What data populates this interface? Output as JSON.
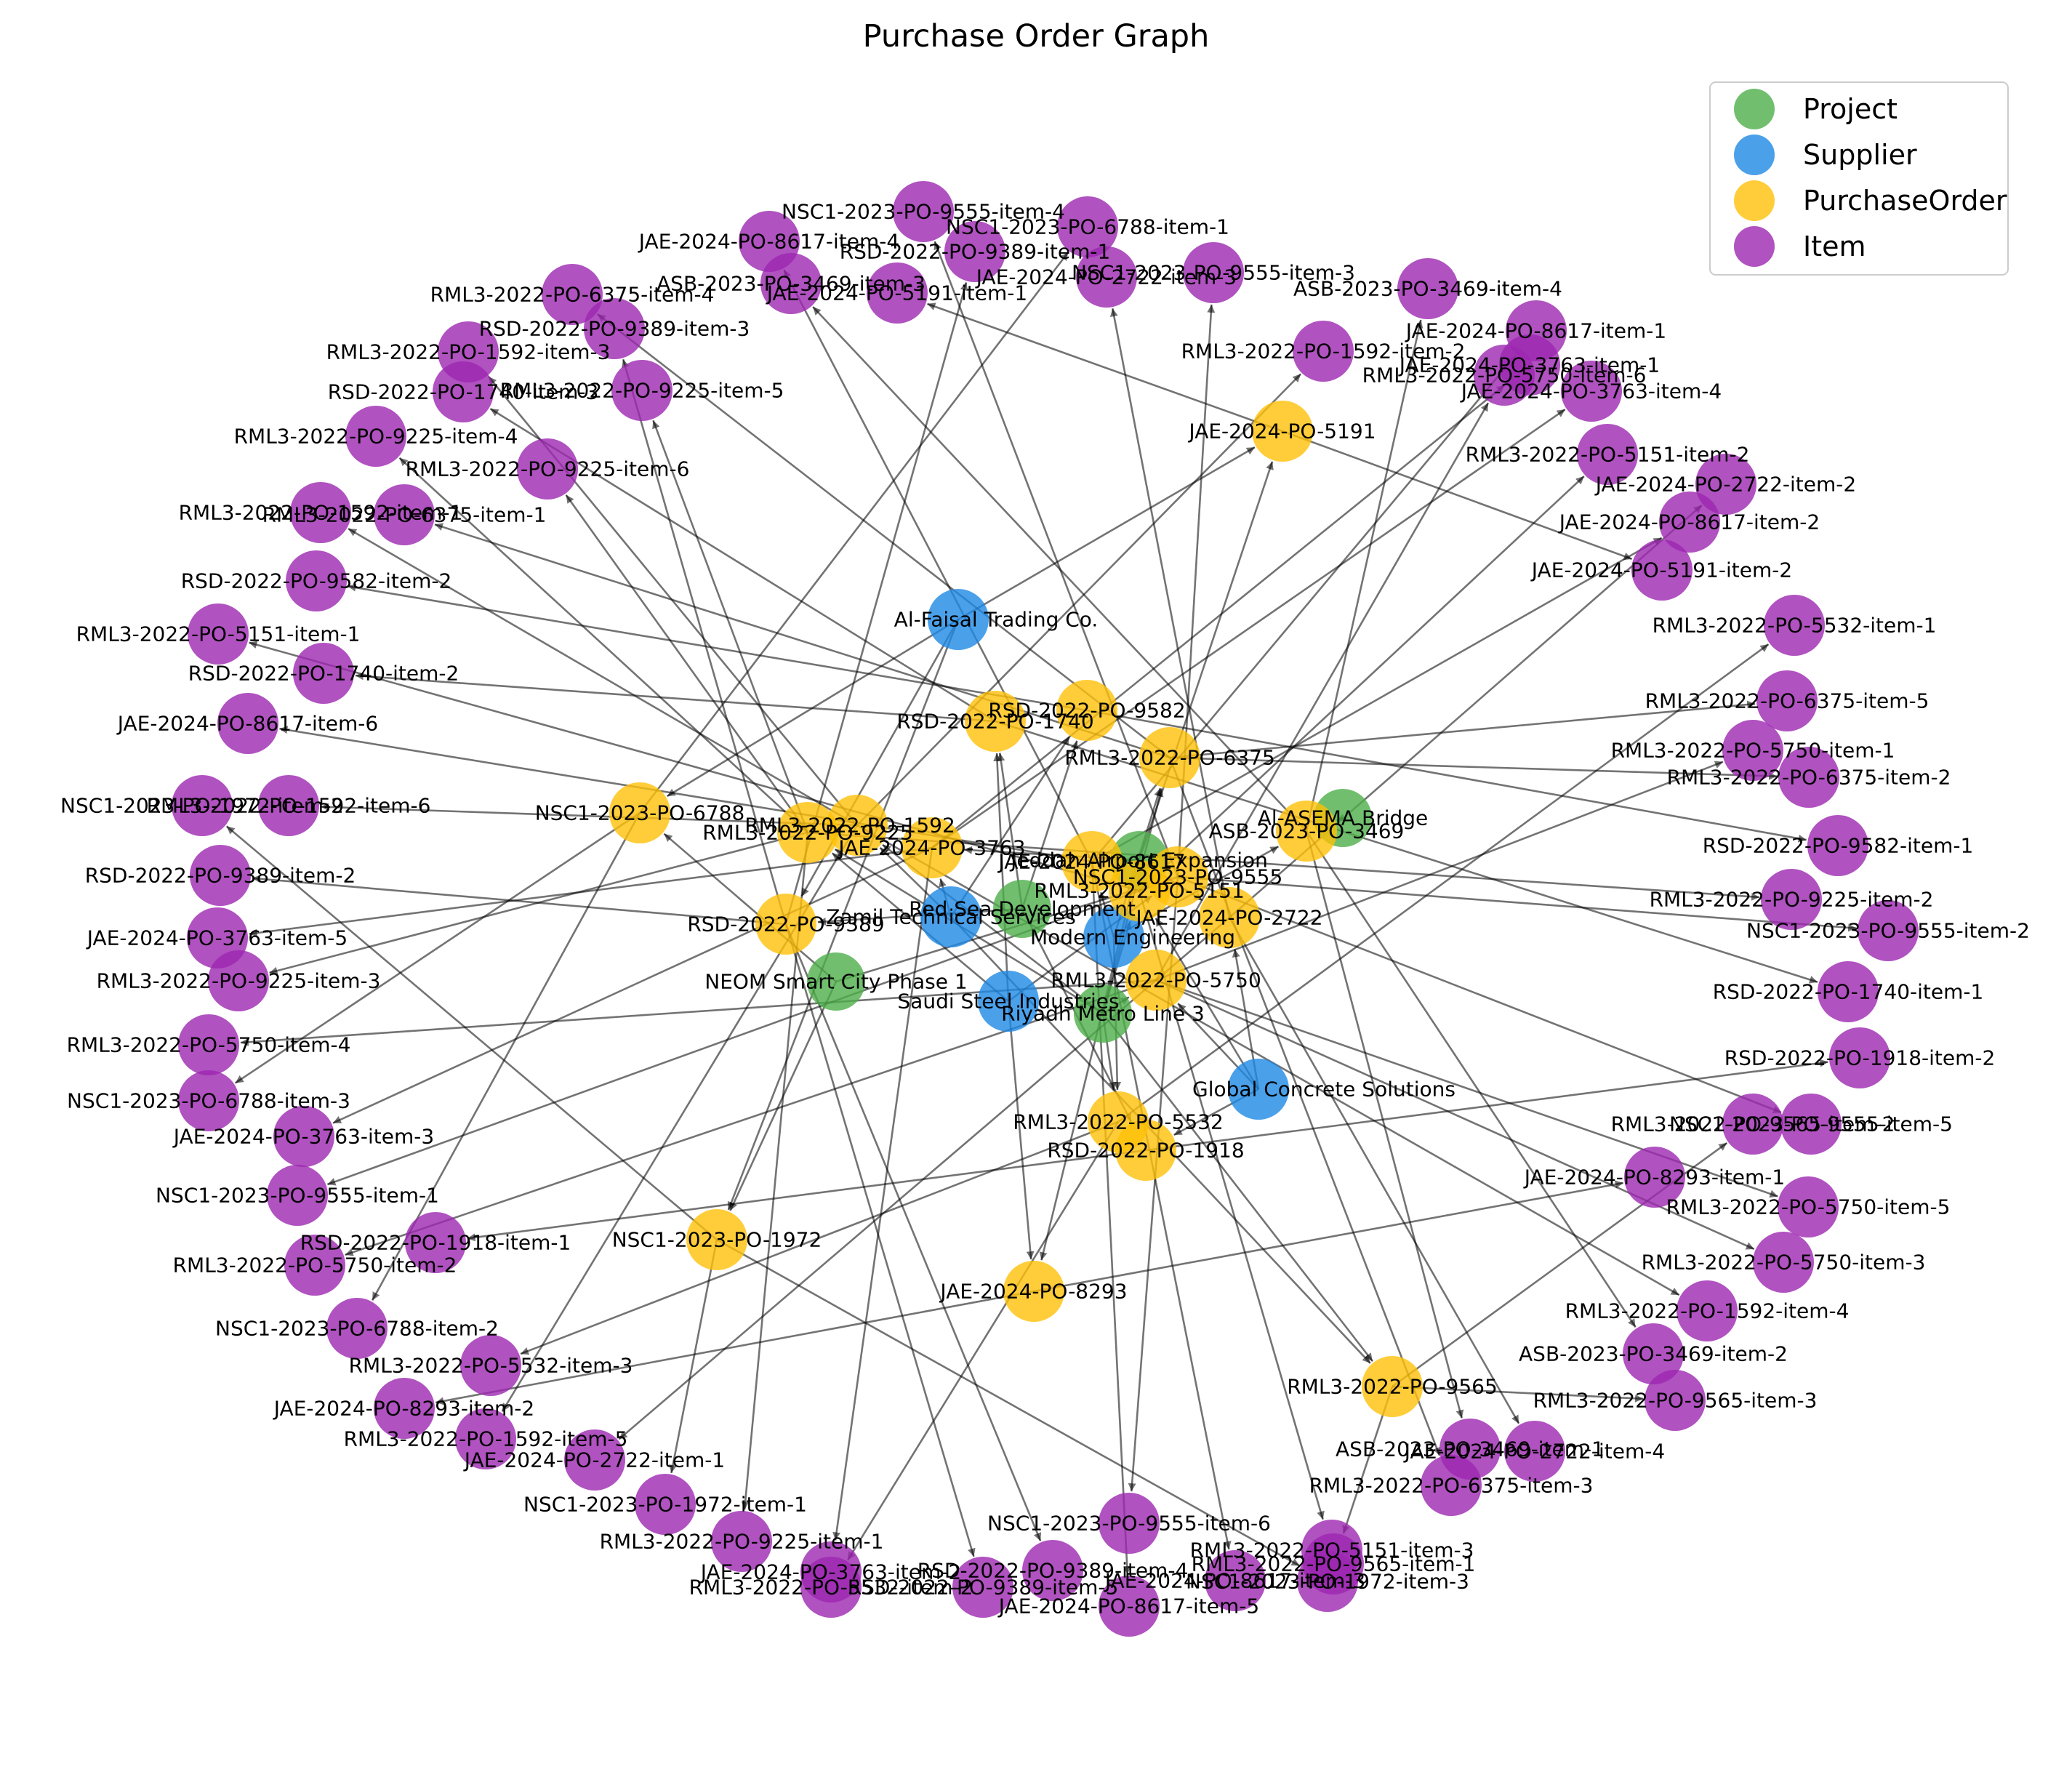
{
  "title": "Purchase Order Graph",
  "colors": {
    "Project": "#4daf4a",
    "Supplier": "#1e88e5",
    "PurchaseOrder": "#ffc107",
    "Item": "#9c27b0"
  },
  "legend": [
    {
      "label": "Project",
      "type": "Project"
    },
    {
      "label": "Supplier",
      "type": "Supplier"
    },
    {
      "label": "PurchaseOrder",
      "type": "PurchaseOrder"
    },
    {
      "label": "Item",
      "type": "Item"
    }
  ],
  "nodes": [
    {
      "id": "proj-neom",
      "label": "NEOM Smart City Phase 1",
      "type": "Project"
    },
    {
      "id": "proj-riyadh",
      "label": "Riyadh Metro Line 3",
      "type": "Project"
    },
    {
      "id": "proj-redsea",
      "label": "Red Sea Development",
      "type": "Project"
    },
    {
      "id": "proj-jeddah",
      "label": "Jeddah Airport Expansion",
      "type": "Project"
    },
    {
      "id": "proj-asema",
      "label": "Al-ASEMA Bridge",
      "type": "Project"
    },
    {
      "id": "sup-faisal",
      "label": "Al-Faisal Trading Co.",
      "type": "Supplier"
    },
    {
      "id": "sup-zamil",
      "label": "Zamil Technical Services",
      "type": "Supplier"
    },
    {
      "id": "sup-modern",
      "label": "Modern Engineering",
      "type": "Supplier"
    },
    {
      "id": "sup-saudi",
      "label": "Saudi Steel Industries",
      "type": "Supplier"
    },
    {
      "id": "sup-global",
      "label": "Global Concrete Solutions",
      "type": "Supplier"
    },
    {
      "id": "po-5191",
      "label": "JAE-2024-PO-5191",
      "type": "PurchaseOrder"
    },
    {
      "id": "po-9582",
      "label": "RSD-2022-PO-9582",
      "type": "PurchaseOrder"
    },
    {
      "id": "po-1740",
      "label": "RSD-2022-PO-1740",
      "type": "PurchaseOrder"
    },
    {
      "id": "po-6375",
      "label": "RML3-2022-PO-6375",
      "type": "PurchaseOrder"
    },
    {
      "id": "po-6788",
      "label": "NSC1-2023-PO-6788",
      "type": "PurchaseOrder"
    },
    {
      "id": "po-1592",
      "label": "RML3-2022-PO-1592",
      "type": "PurchaseOrder"
    },
    {
      "id": "po-9225",
      "label": "RML3-2022-PO-9225",
      "type": "PurchaseOrder"
    },
    {
      "id": "po-3763",
      "label": "JAE-2024-PO-3763",
      "type": "PurchaseOrder"
    },
    {
      "id": "po-8617",
      "label": "JAE-2024-PO-8617",
      "type": "PurchaseOrder"
    },
    {
      "id": "po-5151",
      "label": "RML3-2022-PO-5151",
      "type": "PurchaseOrder"
    },
    {
      "id": "po-9555",
      "label": "NSC1-2023-PO-9555",
      "type": "PurchaseOrder"
    },
    {
      "id": "po-3469",
      "label": "ASB-2023-PO-3469",
      "type": "PurchaseOrder"
    },
    {
      "id": "po-2722",
      "label": "JAE-2024-PO-2722",
      "type": "PurchaseOrder"
    },
    {
      "id": "po-9389",
      "label": "RSD-2022-PO-9389",
      "type": "PurchaseOrder"
    },
    {
      "id": "po-5750",
      "label": "RML3-2022-PO-5750",
      "type": "PurchaseOrder"
    },
    {
      "id": "po-5532",
      "label": "RML3-2022-PO-5532",
      "type": "PurchaseOrder"
    },
    {
      "id": "po-1918",
      "label": "RSD-2022-PO-1918",
      "type": "PurchaseOrder"
    },
    {
      "id": "po-1972",
      "label": "NSC1-2023-PO-1972",
      "type": "PurchaseOrder"
    },
    {
      "id": "po-8293",
      "label": "JAE-2024-PO-8293",
      "type": "PurchaseOrder"
    },
    {
      "id": "po-9565",
      "label": "RML3-2022-PO-9565",
      "type": "PurchaseOrder"
    },
    {
      "id": "it-01",
      "label": "NSC1-2023-PO-9555-item-4",
      "type": "Item"
    },
    {
      "id": "it-02",
      "label": "NSC1-2023-PO-6788-item-1",
      "type": "Item"
    },
    {
      "id": "it-03",
      "label": "JAE-2024-PO-8617-item-4",
      "type": "Item"
    },
    {
      "id": "it-04",
      "label": "RSD-2022-PO-9389-item-1",
      "type": "Item"
    },
    {
      "id": "it-05",
      "label": "JAE-2024-PO-2722-item-3",
      "type": "Item"
    },
    {
      "id": "it-06",
      "label": "RML3-2022-PO-6375-item-4",
      "type": "Item"
    },
    {
      "id": "it-07",
      "label": "ASB-2023-PO-3469-item-3",
      "type": "Item"
    },
    {
      "id": "it-08",
      "label": "NSC1-2023-PO-9555-item-3",
      "type": "Item"
    },
    {
      "id": "it-09",
      "label": "ASB-2023-PO-3469-item-4",
      "type": "Item"
    },
    {
      "id": "it-10",
      "label": "RSD-2022-PO-9389-item-3",
      "type": "Item"
    },
    {
      "id": "it-11",
      "label": "JAE-2024-PO-5191-item-1",
      "type": "Item"
    },
    {
      "id": "it-12",
      "label": "JAE-2024-PO-8617-item-1",
      "type": "Item"
    },
    {
      "id": "it-13",
      "label": "RML3-2022-PO-1592-item-2",
      "type": "Item"
    },
    {
      "id": "it-14",
      "label": "JAE-2024-PO-3763-item-1",
      "type": "Item"
    },
    {
      "id": "it-15",
      "label": "RML3-2022-PO-1592-item-3",
      "type": "Item"
    },
    {
      "id": "it-16",
      "label": "RML3-2022-PO-5750-item-6",
      "type": "Item"
    },
    {
      "id": "it-17",
      "label": "RML3-2022-PO-9225-item-5",
      "type": "Item"
    },
    {
      "id": "it-18",
      "label": "JAE-2024-PO-3763-item-4",
      "type": "Item"
    },
    {
      "id": "it-19",
      "label": "RSD-2022-PO-1740-item-3",
      "type": "Item"
    },
    {
      "id": "it-20",
      "label": "RML3-2022-PO-9225-item-4",
      "type": "Item"
    },
    {
      "id": "it-21",
      "label": "RML3-2022-PO-5151-item-2",
      "type": "Item"
    },
    {
      "id": "it-22",
      "label": "RML3-2022-PO-9225-item-6",
      "type": "Item"
    },
    {
      "id": "it-23",
      "label": "JAE-2024-PO-2722-item-2",
      "type": "Item"
    },
    {
      "id": "it-24",
      "label": "RML3-2022-PO-1592-item-1",
      "type": "Item"
    },
    {
      "id": "it-25",
      "label": "RML3-2022-PO-6375-item-1",
      "type": "Item"
    },
    {
      "id": "it-26",
      "label": "JAE-2024-PO-8617-item-2",
      "type": "Item"
    },
    {
      "id": "it-27",
      "label": "JAE-2024-PO-5191-item-2",
      "type": "Item"
    },
    {
      "id": "it-28",
      "label": "RSD-2022-PO-9582-item-2",
      "type": "Item"
    },
    {
      "id": "it-29",
      "label": "RML3-2022-PO-5532-item-1",
      "type": "Item"
    },
    {
      "id": "it-30",
      "label": "RML3-2022-PO-5151-item-1",
      "type": "Item"
    },
    {
      "id": "it-31",
      "label": "RSD-2022-PO-1740-item-2",
      "type": "Item"
    },
    {
      "id": "it-32",
      "label": "RML3-2022-PO-6375-item-5",
      "type": "Item"
    },
    {
      "id": "it-33",
      "label": "JAE-2024-PO-8617-item-6",
      "type": "Item"
    },
    {
      "id": "it-34",
      "label": "RML3-2022-PO-5750-item-1",
      "type": "Item"
    },
    {
      "id": "it-35",
      "label": "RML3-2022-PO-6375-item-2",
      "type": "Item"
    },
    {
      "id": "it-36",
      "label": "NSC1-2023-PO-1972-item-2",
      "type": "Item"
    },
    {
      "id": "it-37",
      "label": "RML3-2022-PO-1592-item-6",
      "type": "Item"
    },
    {
      "id": "it-38",
      "label": "RSD-2022-PO-9582-item-1",
      "type": "Item"
    },
    {
      "id": "it-39",
      "label": "RSD-2022-PO-9389-item-2",
      "type": "Item"
    },
    {
      "id": "it-40",
      "label": "RML3-2022-PO-9225-item-2",
      "type": "Item"
    },
    {
      "id": "it-41",
      "label": "JAE-2024-PO-3763-item-5",
      "type": "Item"
    },
    {
      "id": "it-42",
      "label": "NSC1-2023-PO-9555-item-2",
      "type": "Item"
    },
    {
      "id": "it-43",
      "label": "RML3-2022-PO-9225-item-3",
      "type": "Item"
    },
    {
      "id": "it-44",
      "label": "RSD-2022-PO-1740-item-1",
      "type": "Item"
    },
    {
      "id": "it-45",
      "label": "RML3-2022-PO-5750-item-4",
      "type": "Item"
    },
    {
      "id": "it-46",
      "label": "RSD-2022-PO-1918-item-2",
      "type": "Item"
    },
    {
      "id": "it-47",
      "label": "NSC1-2023-PO-6788-item-3",
      "type": "Item"
    },
    {
      "id": "it-48",
      "label": "JAE-2024-PO-3763-item-3",
      "type": "Item"
    },
    {
      "id": "it-49",
      "label": "RML3-2022-PO-9565-item-2",
      "type": "Item"
    },
    {
      "id": "it-50",
      "label": "NSC1-2023-PO-9555-item-5",
      "type": "Item"
    },
    {
      "id": "it-51",
      "label": "NSC1-2023-PO-9555-item-1",
      "type": "Item"
    },
    {
      "id": "it-52",
      "label": "JAE-2024-PO-8293-item-1",
      "type": "Item"
    },
    {
      "id": "it-53",
      "label": "RSD-2022-PO-1918-item-1",
      "type": "Item"
    },
    {
      "id": "it-54",
      "label": "RML3-2022-PO-5750-item-5",
      "type": "Item"
    },
    {
      "id": "it-55",
      "label": "RML3-2022-PO-5750-item-2",
      "type": "Item"
    },
    {
      "id": "it-56",
      "label": "RML3-2022-PO-5750-item-3",
      "type": "Item"
    },
    {
      "id": "it-57",
      "label": "NSC1-2023-PO-6788-item-2",
      "type": "Item"
    },
    {
      "id": "it-58",
      "label": "RML3-2022-PO-1592-item-4",
      "type": "Item"
    },
    {
      "id": "it-59",
      "label": "RML3-2022-PO-5532-item-3",
      "type": "Item"
    },
    {
      "id": "it-60",
      "label": "ASB-2023-PO-3469-item-2",
      "type": "Item"
    },
    {
      "id": "it-61",
      "label": "JAE-2024-PO-8293-item-2",
      "type": "Item"
    },
    {
      "id": "it-62",
      "label": "RML3-2022-PO-1592-item-5",
      "type": "Item"
    },
    {
      "id": "it-63",
      "label": "RML3-2022-PO-9565-item-3",
      "type": "Item"
    },
    {
      "id": "it-64",
      "label": "JAE-2024-PO-2722-item-1",
      "type": "Item"
    },
    {
      "id": "it-65",
      "label": "JAE-2024-PO-2722-item-4",
      "type": "Item"
    },
    {
      "id": "it-66",
      "label": "ASB-2023-PO-3469-item-1",
      "type": "Item"
    },
    {
      "id": "it-67",
      "label": "NSC1-2023-PO-1972-item-1",
      "type": "Item"
    },
    {
      "id": "it-68",
      "label": "RML3-2022-PO-6375-item-3",
      "type": "Item"
    },
    {
      "id": "it-69",
      "label": "RML3-2022-PO-9225-item-1",
      "type": "Item"
    },
    {
      "id": "it-70",
      "label": "NSC1-2023-PO-9555-item-6",
      "type": "Item"
    },
    {
      "id": "it-71",
      "label": "RML3-2022-PO-5151-item-3",
      "type": "Item"
    },
    {
      "id": "it-72",
      "label": "JAE-2024-PO-3763-item-2",
      "type": "Item"
    },
    {
      "id": "it-73",
      "label": "RML3-2022-PO-9565-item-1",
      "type": "Item"
    },
    {
      "id": "it-74",
      "label": "RML3-2022-PO-5532-item-2",
      "type": "Item"
    },
    {
      "id": "it-75",
      "label": "RSD-2022-PO-9389-item-4",
      "type": "Item"
    },
    {
      "id": "it-76",
      "label": "NSC1-2023-PO-1972-item-3",
      "type": "Item"
    },
    {
      "id": "it-77",
      "label": "RSD-2022-PO-9389-item-5",
      "type": "Item"
    },
    {
      "id": "it-78",
      "label": "JAE-2024-PO-8617-item-3",
      "type": "Item"
    },
    {
      "id": "it-79",
      "label": "JAE-2024-PO-8617-item-5",
      "type": "Item"
    }
  ],
  "edges": [
    [
      "proj-neom",
      "po-6788"
    ],
    [
      "proj-neom",
      "po-9555"
    ],
    [
      "proj-neom",
      "po-1972"
    ],
    [
      "proj-riyadh",
      "po-6375"
    ],
    [
      "proj-riyadh",
      "po-1592"
    ],
    [
      "proj-riyadh",
      "po-9225"
    ],
    [
      "proj-riyadh",
      "po-5151"
    ],
    [
      "proj-riyadh",
      "po-5750"
    ],
    [
      "proj-riyadh",
      "po-5532"
    ],
    [
      "proj-riyadh",
      "po-9565"
    ],
    [
      "proj-redsea",
      "po-9582"
    ],
    [
      "proj-redsea",
      "po-1740"
    ],
    [
      "proj-redsea",
      "po-9389"
    ],
    [
      "proj-redsea",
      "po-1918"
    ],
    [
      "proj-jeddah",
      "po-5191"
    ],
    [
      "proj-jeddah",
      "po-3763"
    ],
    [
      "proj-jeddah",
      "po-8617"
    ],
    [
      "proj-jeddah",
      "po-2722"
    ],
    [
      "proj-jeddah",
      "po-8293"
    ],
    [
      "proj-asema",
      "po-3469"
    ],
    [
      "sup-faisal",
      "po-6788"
    ],
    [
      "sup-faisal",
      "po-5191"
    ],
    [
      "sup-faisal",
      "po-9389"
    ],
    [
      "sup-faisal",
      "po-1972"
    ],
    [
      "sup-zamil",
      "po-9582"
    ],
    [
      "sup-zamil",
      "po-1592"
    ],
    [
      "sup-zamil",
      "po-3763"
    ],
    [
      "sup-zamil",
      "po-9565"
    ],
    [
      "sup-modern",
      "po-6375"
    ],
    [
      "sup-modern",
      "po-8617"
    ],
    [
      "sup-modern",
      "po-3469"
    ],
    [
      "sup-modern",
      "po-5532"
    ],
    [
      "sup-saudi",
      "po-1740"
    ],
    [
      "sup-saudi",
      "po-9225"
    ],
    [
      "sup-saudi",
      "po-9555"
    ],
    [
      "sup-saudi",
      "po-8293"
    ],
    [
      "sup-global",
      "po-5151"
    ],
    [
      "sup-global",
      "po-2722"
    ],
    [
      "sup-global",
      "po-5750"
    ],
    [
      "sup-global",
      "po-1918"
    ],
    [
      "po-9555",
      "it-01"
    ],
    [
      "po-9555",
      "it-08"
    ],
    [
      "po-9555",
      "it-42"
    ],
    [
      "po-9555",
      "it-50"
    ],
    [
      "po-9555",
      "it-51"
    ],
    [
      "po-9555",
      "it-70"
    ],
    [
      "po-6788",
      "it-02"
    ],
    [
      "po-6788",
      "it-47"
    ],
    [
      "po-6788",
      "it-57"
    ],
    [
      "po-8617",
      "it-03"
    ],
    [
      "po-8617",
      "it-12"
    ],
    [
      "po-8617",
      "it-26"
    ],
    [
      "po-8617",
      "it-33"
    ],
    [
      "po-8617",
      "it-78"
    ],
    [
      "po-8617",
      "it-79"
    ],
    [
      "po-9389",
      "it-04"
    ],
    [
      "po-9389",
      "it-10"
    ],
    [
      "po-9389",
      "it-39"
    ],
    [
      "po-9389",
      "it-75"
    ],
    [
      "po-9389",
      "it-77"
    ],
    [
      "po-2722",
      "it-05"
    ],
    [
      "po-2722",
      "it-23"
    ],
    [
      "po-2722",
      "it-64"
    ],
    [
      "po-2722",
      "it-65"
    ],
    [
      "po-6375",
      "it-06"
    ],
    [
      "po-6375",
      "it-25"
    ],
    [
      "po-6375",
      "it-32"
    ],
    [
      "po-6375",
      "it-35"
    ],
    [
      "po-6375",
      "it-68"
    ],
    [
      "po-3469",
      "it-07"
    ],
    [
      "po-3469",
      "it-09"
    ],
    [
      "po-3469",
      "it-60"
    ],
    [
      "po-3469",
      "it-66"
    ],
    [
      "po-5191",
      "it-11"
    ],
    [
      "po-5191",
      "it-27"
    ],
    [
      "po-1592",
      "it-13"
    ],
    [
      "po-1592",
      "it-15"
    ],
    [
      "po-1592",
      "it-24"
    ],
    [
      "po-1592",
      "it-37"
    ],
    [
      "po-1592",
      "it-58"
    ],
    [
      "po-1592",
      "it-62"
    ],
    [
      "po-3763",
      "it-14"
    ],
    [
      "po-3763",
      "it-18"
    ],
    [
      "po-3763",
      "it-41"
    ],
    [
      "po-3763",
      "it-48"
    ],
    [
      "po-3763",
      "it-72"
    ],
    [
      "po-5750",
      "it-16"
    ],
    [
      "po-5750",
      "it-34"
    ],
    [
      "po-5750",
      "it-45"
    ],
    [
      "po-5750",
      "it-54"
    ],
    [
      "po-5750",
      "it-55"
    ],
    [
      "po-5750",
      "it-56"
    ],
    [
      "po-9225",
      "it-17"
    ],
    [
      "po-9225",
      "it-20"
    ],
    [
      "po-9225",
      "it-22"
    ],
    [
      "po-9225",
      "it-40"
    ],
    [
      "po-9225",
      "it-43"
    ],
    [
      "po-9225",
      "it-69"
    ],
    [
      "po-1740",
      "it-19"
    ],
    [
      "po-1740",
      "it-31"
    ],
    [
      "po-1740",
      "it-44"
    ],
    [
      "po-5151",
      "it-21"
    ],
    [
      "po-5151",
      "it-30"
    ],
    [
      "po-5151",
      "it-71"
    ],
    [
      "po-9582",
      "it-28"
    ],
    [
      "po-9582",
      "it-38"
    ],
    [
      "po-5532",
      "it-29"
    ],
    [
      "po-5532",
      "it-59"
    ],
    [
      "po-5532",
      "it-74"
    ],
    [
      "po-1972",
      "it-36"
    ],
    [
      "po-1972",
      "it-67"
    ],
    [
      "po-1972",
      "it-76"
    ],
    [
      "po-1918",
      "it-46"
    ],
    [
      "po-1918",
      "it-53"
    ],
    [
      "po-9565",
      "it-49"
    ],
    [
      "po-9565",
      "it-63"
    ],
    [
      "po-9565",
      "it-73"
    ],
    [
      "po-8293",
      "it-52"
    ],
    [
      "po-8293",
      "it-61"
    ]
  ]
}
